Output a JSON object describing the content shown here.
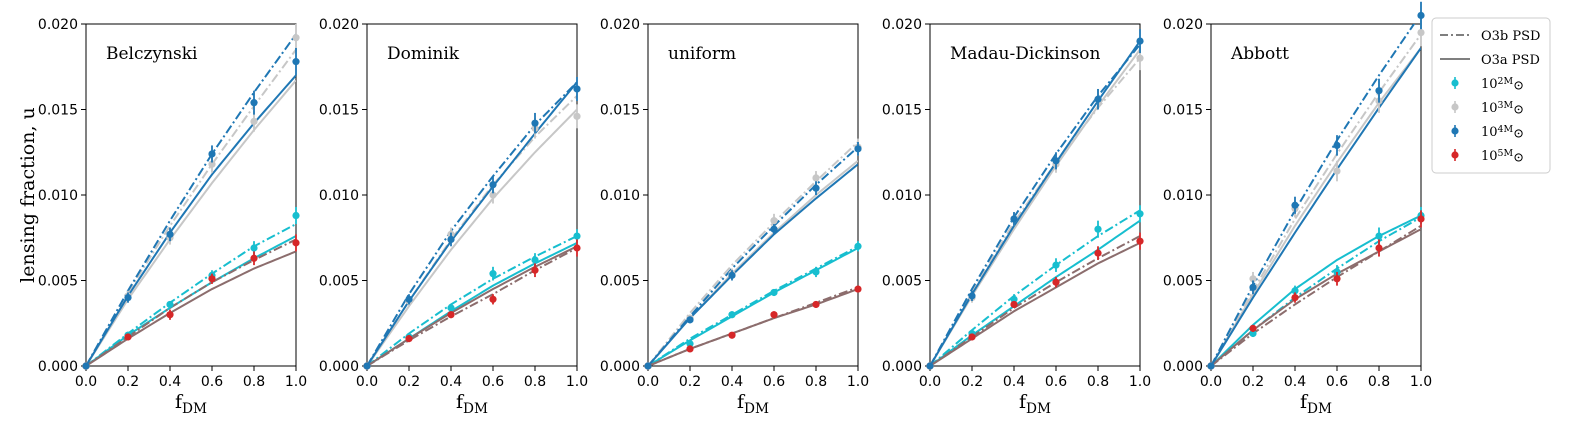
{
  "figure": {
    "ylabel": "lensing fraction, u",
    "xlabel": "f_DM",
    "x_ticks": [
      "0.0",
      "0.2",
      "0.4",
      "0.6",
      "0.8",
      "1.0"
    ],
    "y_ticks": [
      "0.000",
      "0.005",
      "0.010",
      "0.015",
      "0.020"
    ],
    "xlim": [
      0,
      1.0
    ],
    "ylim": [
      0,
      0.02
    ]
  },
  "legend": {
    "placement": "right, outside axes",
    "items": [
      {
        "label": "O3b PSD",
        "kind": "line",
        "style": "dashdot",
        "color": "#555555"
      },
      {
        "label": "O3a PSD",
        "kind": "line",
        "style": "solid",
        "color": "#555555"
      },
      {
        "label": "10^2M⊙",
        "kind": "marker",
        "color": "#17becf"
      },
      {
        "label": "10^3M⊙",
        "kind": "marker",
        "color": "#c7c7c7"
      },
      {
        "label": "10^4M⊙",
        "kind": "marker",
        "color": "#1f77b4"
      },
      {
        "label": "10^5M⊙",
        "kind": "marker",
        "color": "#d62728"
      }
    ]
  },
  "colors": {
    "m2": "#17becf",
    "m3": "#c7c7c7",
    "m4": "#1f77b4",
    "m5": "#d62728",
    "m5_line": "#8c6d6d"
  },
  "chart_data": [
    {
      "type": "line",
      "title": "Belczynski",
      "x": [
        0,
        0.2,
        0.4,
        0.6,
        0.8,
        1.0
      ],
      "ylim": [
        0,
        0.02
      ],
      "series": [
        {
          "name": "10^2M⊙",
          "color": "#17becf",
          "points": [
            0,
            0.0018,
            0.0036,
            0.0053,
            0.0069,
            0.0088
          ],
          "errors": [
            0,
            0.0002,
            0.0002,
            0.0003,
            0.0004,
            0.0005
          ],
          "o3b": [
            0,
            0.0019,
            0.0037,
            0.0054,
            0.007,
            0.0083
          ],
          "o3a": [
            0,
            0.0018,
            0.0034,
            0.0049,
            0.0063,
            0.0076
          ]
        },
        {
          "name": "10^3M⊙",
          "color": "#c7c7c7",
          "points": [
            0,
            0.0041,
            0.0075,
            0.0118,
            0.0143,
            0.0192
          ],
          "errors": [
            0,
            0.0003,
            0.0004,
            0.0005,
            0.0006,
            0.0008
          ],
          "o3b": [
            0,
            0.0043,
            0.0082,
            0.0118,
            0.0152,
            0.0185
          ],
          "o3a": [
            0,
            0.0039,
            0.0074,
            0.0107,
            0.0138,
            0.0167
          ]
        },
        {
          "name": "10^4M⊙",
          "color": "#1f77b4",
          "points": [
            0,
            0.004,
            0.0077,
            0.0124,
            0.0154,
            0.0178
          ],
          "errors": [
            0,
            0.0003,
            0.0004,
            0.0005,
            0.0007,
            0.0008
          ],
          "o3b": [
            0,
            0.0044,
            0.0085,
            0.0124,
            0.016,
            0.0194
          ],
          "o3a": [
            0,
            0.0041,
            0.0078,
            0.0112,
            0.0142,
            0.017
          ]
        },
        {
          "name": "10^5M⊙",
          "color": "#d62728",
          "points": [
            0,
            0.0017,
            0.003,
            0.0051,
            0.0063,
            0.0072
          ],
          "errors": [
            0,
            0.0002,
            0.0003,
            0.0003,
            0.0004,
            0.0005
          ],
          "o3b": [
            0,
            0.0017,
            0.0034,
            0.0049,
            0.0062,
            0.0074
          ],
          "o3a": [
            0,
            0.0016,
            0.0031,
            0.0045,
            0.0057,
            0.0067
          ]
        }
      ]
    },
    {
      "type": "line",
      "title": "Dominik",
      "x": [
        0,
        0.2,
        0.4,
        0.6,
        0.8,
        1.0
      ],
      "ylim": [
        0,
        0.02
      ],
      "series": [
        {
          "name": "10^2M⊙",
          "color": "#17becf",
          "points": [
            0,
            0.0017,
            0.0034,
            0.0054,
            0.0062,
            0.0076
          ],
          "errors": [
            0,
            0.0002,
            0.0002,
            0.0004,
            0.0004,
            0.0004
          ],
          "o3b": [
            0,
            0.0019,
            0.0036,
            0.0051,
            0.0064,
            0.0076
          ],
          "o3a": [
            0,
            0.0016,
            0.0032,
            0.0047,
            0.006,
            0.0072
          ]
        },
        {
          "name": "10^3M⊙",
          "color": "#c7c7c7",
          "points": [
            0,
            0.0038,
            0.0077,
            0.01,
            0.0139,
            0.0146
          ],
          "errors": [
            0,
            0.0003,
            0.0004,
            0.0005,
            0.0006,
            0.0007
          ],
          "o3b": [
            0,
            0.0038,
            0.0074,
            0.0106,
            0.0134,
            0.0158
          ],
          "o3a": [
            0,
            0.0035,
            0.0068,
            0.0098,
            0.0125,
            0.015
          ]
        },
        {
          "name": "10^4M⊙",
          "color": "#1f77b4",
          "points": [
            0,
            0.0039,
            0.0074,
            0.0106,
            0.0142,
            0.0162
          ],
          "errors": [
            0,
            0.0003,
            0.0004,
            0.0005,
            0.0006,
            0.0007
          ],
          "o3b": [
            0,
            0.0042,
            0.0079,
            0.0111,
            0.0141,
            0.0166
          ],
          "o3a": [
            0,
            0.0038,
            0.0073,
            0.0105,
            0.0136,
            0.0166
          ]
        },
        {
          "name": "10^5M⊙",
          "color": "#d62728",
          "points": [
            0,
            0.0016,
            0.003,
            0.0039,
            0.0056,
            0.0069
          ],
          "errors": [
            0,
            0.0002,
            0.0002,
            0.0003,
            0.0004,
            0.0005
          ],
          "o3b": [
            0,
            0.0015,
            0.0029,
            0.0042,
            0.0056,
            0.0069
          ],
          "o3a": [
            0,
            0.0016,
            0.0031,
            0.0045,
            0.0058,
            0.007
          ]
        }
      ]
    },
    {
      "type": "line",
      "title": "uniform",
      "x": [
        0,
        0.2,
        0.4,
        0.6,
        0.8,
        1.0
      ],
      "ylim": [
        0,
        0.02
      ],
      "series": [
        {
          "name": "10^2M⊙",
          "color": "#17becf",
          "points": [
            0,
            0.0013,
            0.003,
            0.0043,
            0.0055,
            0.007
          ],
          "errors": [
            0,
            0.0001,
            0.0002,
            0.0002,
            0.0003,
            0.0003
          ],
          "o3b": [
            0,
            0.0016,
            0.003,
            0.0044,
            0.0057,
            0.007
          ],
          "o3a": [
            0,
            0.0015,
            0.0029,
            0.0043,
            0.0056,
            0.0069
          ]
        },
        {
          "name": "10^3M⊙",
          "color": "#c7c7c7",
          "points": [
            0,
            0.0028,
            0.0054,
            0.0085,
            0.011,
            0.0128
          ],
          "errors": [
            0,
            0.0002,
            0.0003,
            0.0004,
            0.0004,
            0.0005
          ],
          "o3b": [
            0,
            0.0031,
            0.0059,
            0.0084,
            0.0108,
            0.0131
          ],
          "o3a": [
            0,
            0.0028,
            0.0054,
            0.0078,
            0.01,
            0.012
          ]
        },
        {
          "name": "10^4M⊙",
          "color": "#1f77b4",
          "points": [
            0,
            0.0027,
            0.0053,
            0.008,
            0.0104,
            0.0127
          ],
          "errors": [
            0,
            0.0002,
            0.0003,
            0.0003,
            0.0004,
            0.0004
          ],
          "o3b": [
            0,
            0.0029,
            0.0057,
            0.0082,
            0.0106,
            0.0128
          ],
          "o3a": [
            0,
            0.0028,
            0.0053,
            0.0077,
            0.0098,
            0.0118
          ]
        },
        {
          "name": "10^5M⊙",
          "color": "#d62728",
          "points": [
            0,
            0.001,
            0.0018,
            0.003,
            0.0036,
            0.0045
          ],
          "errors": [
            0,
            0.0001,
            0.0001,
            0.0002,
            0.0002,
            0.0002
          ],
          "o3b": [
            0,
            0.001,
            0.0019,
            0.0028,
            0.0037,
            0.0046
          ],
          "o3a": [
            0,
            0.001,
            0.0019,
            0.0028,
            0.0036,
            0.0045
          ]
        }
      ]
    },
    {
      "type": "line",
      "title": "Madau-Dickinson",
      "x": [
        0,
        0.2,
        0.4,
        0.6,
        0.8,
        1.0
      ],
      "ylim": [
        0,
        0.02
      ],
      "series": [
        {
          "name": "10^2M⊙",
          "color": "#17becf",
          "points": [
            0,
            0.0019,
            0.0039,
            0.0059,
            0.008,
            0.0089
          ],
          "errors": [
            0,
            0.0002,
            0.0003,
            0.0004,
            0.0005,
            0.0005
          ],
          "o3b": [
            0,
            0.0021,
            0.0041,
            0.0059,
            0.0076,
            0.0091
          ],
          "o3a": [
            0,
            0.0018,
            0.0035,
            0.0052,
            0.0068,
            0.0085
          ]
        },
        {
          "name": "10^3M⊙",
          "color": "#c7c7c7",
          "points": [
            0,
            0.004,
            0.0086,
            0.0118,
            0.0156,
            0.018
          ],
          "errors": [
            0,
            0.0003,
            0.0004,
            0.0005,
            0.0006,
            0.0007
          ],
          "o3b": [
            0,
            0.0043,
            0.0084,
            0.0119,
            0.0151,
            0.018
          ],
          "o3a": [
            0,
            0.0041,
            0.008,
            0.0117,
            0.0152,
            0.0185
          ]
        },
        {
          "name": "10^4M⊙",
          "color": "#1f77b4",
          "points": [
            0,
            0.0041,
            0.0086,
            0.012,
            0.0156,
            0.019
          ],
          "errors": [
            0,
            0.0003,
            0.0004,
            0.0005,
            0.0006,
            0.0007
          ],
          "o3b": [
            0,
            0.0045,
            0.0087,
            0.0124,
            0.0158,
            0.0188
          ],
          "o3a": [
            0,
            0.0042,
            0.0082,
            0.0119,
            0.0155,
            0.019
          ]
        },
        {
          "name": "10^5M⊙",
          "color": "#d62728",
          "points": [
            0,
            0.0017,
            0.0036,
            0.0049,
            0.0066,
            0.0073
          ],
          "errors": [
            0,
            0.0002,
            0.0002,
            0.0003,
            0.0004,
            0.0005
          ],
          "o3b": [
            0,
            0.0017,
            0.0034,
            0.0049,
            0.0063,
            0.0076
          ],
          "o3a": [
            0,
            0.0016,
            0.0032,
            0.0046,
            0.006,
            0.0072
          ]
        }
      ]
    },
    {
      "type": "line",
      "title": "Abbott",
      "x": [
        0,
        0.2,
        0.4,
        0.6,
        0.8,
        1.0
      ],
      "ylim": [
        0,
        0.02
      ],
      "series": [
        {
          "name": "10^2M⊙",
          "color": "#17becf",
          "points": [
            0,
            0.0019,
            0.0044,
            0.0055,
            0.0076,
            0.0088
          ],
          "errors": [
            0,
            0.0002,
            0.0003,
            0.0004,
            0.0005,
            0.0005
          ],
          "o3b": [
            0,
            0.0021,
            0.004,
            0.0057,
            0.0073,
            0.0087
          ],
          "o3a": [
            0,
            0.0024,
            0.0045,
            0.0062,
            0.0076,
            0.0088
          ]
        },
        {
          "name": "10^3M⊙",
          "color": "#c7c7c7",
          "points": [
            0,
            0.0051,
            0.0092,
            0.0114,
            0.0155,
            0.0195
          ],
          "errors": [
            0,
            0.0004,
            0.0005,
            0.0006,
            0.0007,
            0.0008
          ],
          "o3b": [
            0,
            0.0044,
            0.0086,
            0.0124,
            0.016,
            0.0194
          ],
          "o3a": [
            0,
            0.0042,
            0.0082,
            0.0119,
            0.0154,
            0.0186
          ]
        },
        {
          "name": "10^4M⊙",
          "color": "#1f77b4",
          "points": [
            0,
            0.0046,
            0.0094,
            0.0129,
            0.0161,
            0.0205
          ],
          "errors": [
            0,
            0.0004,
            0.0005,
            0.0006,
            0.0007,
            0.0008
          ],
          "o3b": [
            0,
            0.0047,
            0.0091,
            0.0132,
            0.017,
            0.0206
          ],
          "o3a": [
            0,
            0.004,
            0.0078,
            0.0115,
            0.0151,
            0.0186
          ]
        },
        {
          "name": "10^5M⊙",
          "color": "#d62728",
          "points": [
            0,
            0.0022,
            0.004,
            0.0051,
            0.0069,
            0.0086
          ],
          "errors": [
            0,
            0.0002,
            0.0003,
            0.0004,
            0.0005,
            0.0005
          ],
          "o3b": [
            0,
            0.0019,
            0.0036,
            0.0052,
            0.0067,
            0.0082
          ],
          "o3a": [
            0,
            0.0021,
            0.0039,
            0.0054,
            0.0067,
            0.008
          ]
        }
      ]
    }
  ]
}
